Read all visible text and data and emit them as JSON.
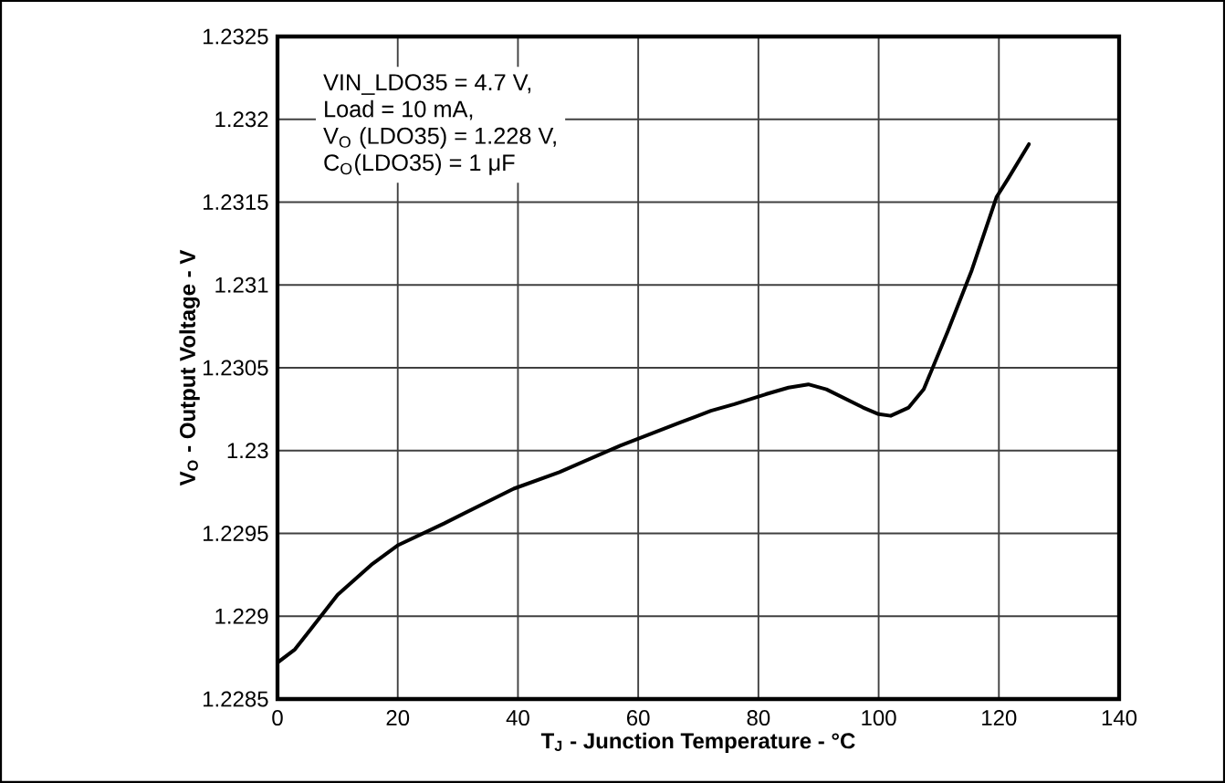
{
  "chart_data": {
    "type": "line",
    "xlabel": "T$_{J}$ - Junction Temperature - °C",
    "ylabel": "V$_{O}$ - Output Voltage - V",
    "annotations": [
      "VIN_LDO35 = 4.7 V,",
      "Load = 10 mA,",
      "V$_{O}$ (LDO35) = 1.228 V,",
      "C$_{O}$(LDO35) = 1 μF"
    ],
    "x": [
      0,
      2.9,
      5.5,
      10,
      15.6,
      20.1,
      27.7,
      39.3,
      46.9,
      57,
      67,
      72.1,
      76,
      81.2,
      85,
      88.3,
      91.3,
      97.4,
      100,
      102,
      105,
      107.5,
      111.5,
      115.5,
      119.6,
      121.5,
      125
    ],
    "series": [
      {
        "color": "#000000",
        "values": [
          1.22872,
          1.2288,
          1.22892,
          1.22913,
          1.22931,
          1.22943,
          1.22956,
          1.22977,
          1.22987,
          1.23003,
          1.23017,
          1.23024,
          1.23028,
          1.23034,
          1.23038,
          1.2304,
          1.23037,
          1.23026,
          1.23022,
          1.23021,
          1.23026,
          1.23037,
          1.23072,
          1.23109,
          1.23153,
          1.23164,
          1.23185
        ]
      }
    ],
    "xlim": [
      0,
      140
    ],
    "xticks": [
      0,
      20,
      40,
      60,
      80,
      100,
      120,
      140
    ],
    "ylim": [
      1.2285,
      1.2325
    ],
    "yticks": [
      1.2285,
      1.229,
      1.2295,
      1.23,
      1.2305,
      1.231,
      1.2315,
      1.232,
      1.2325
    ],
    "grid": true
  }
}
